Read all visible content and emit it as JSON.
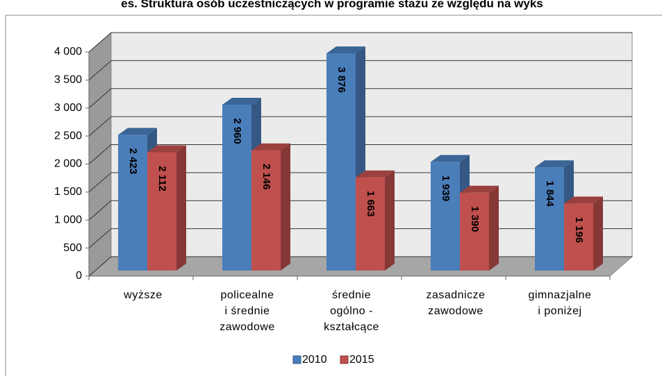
{
  "chart_data": {
    "type": "bar3d",
    "title": "es. Struktura osób uczestniczących w programie stażu ze względu na wyks",
    "categories": [
      [
        "wyższe"
      ],
      [
        "policealne",
        "i średnie",
        "zawodowe"
      ],
      [
        "średnie",
        "ogólno -",
        "kształcące"
      ],
      [
        "zasadnicze",
        "zawodowe"
      ],
      [
        "gimnazjalne",
        "i poniżej"
      ]
    ],
    "series": [
      {
        "name": "2010",
        "color": "#4a7ebb",
        "values": [
          2423,
          2960,
          3876,
          1939,
          1844
        ],
        "value_labels": [
          "2 423",
          "2 960",
          "3 876",
          "1 939",
          "1 844"
        ]
      },
      {
        "name": "2015",
        "color": "#c0504d",
        "values": [
          2112,
          2146,
          1663,
          1390,
          1196
        ],
        "value_labels": [
          "2 112",
          "2 146",
          "1 663",
          "1 390",
          "1 196"
        ]
      }
    ],
    "ylim": [
      0,
      4000
    ],
    "yticks": [
      0,
      500,
      {
        "value": 1000,
        "label": "1 000"
      },
      {
        "value": 1500,
        "label": "1 500"
      },
      {
        "value": 2000,
        "label": "2 000"
      },
      {
        "value": 2500,
        "label": "2 500"
      },
      {
        "value": 3000,
        "label": "3 000"
      },
      {
        "value": 3500,
        "label": "3 500"
      },
      {
        "value": 4000,
        "label": "4 000"
      }
    ],
    "grid": true,
    "legend": "bottom"
  }
}
